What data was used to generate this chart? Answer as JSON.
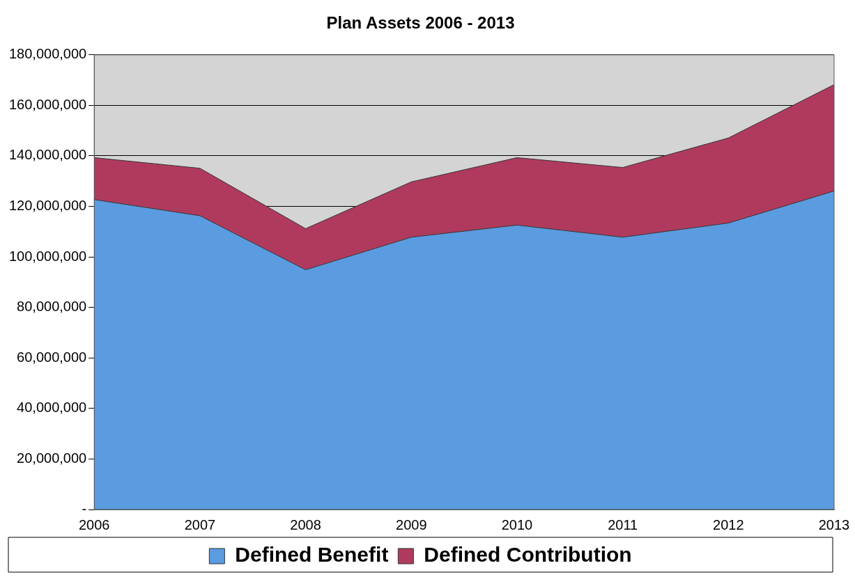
{
  "chart_data": {
    "type": "area",
    "title": "Plan Assets 2006 - 2013",
    "stacked": true,
    "categories": [
      "2006",
      "2007",
      "2008",
      "2009",
      "2010",
      "2011",
      "2012",
      "2013"
    ],
    "series": [
      {
        "name": "Defined Benefit",
        "color": "#5b9be0",
        "values": [
          122700000,
          116300000,
          94900000,
          107800000,
          112600000,
          107800000,
          113400000,
          126100000
        ]
      },
      {
        "name": "Defined Contribution",
        "color": "#b03a5e",
        "values": [
          16600000,
          18800000,
          16300000,
          21900000,
          26700000,
          27600000,
          33700000,
          42100000
        ]
      }
    ],
    "ylim": [
      0,
      180000000
    ],
    "yticks": [
      {
        "value": 0,
        "label": "-"
      },
      {
        "value": 20000000,
        "label": "20,000,000"
      },
      {
        "value": 40000000,
        "label": "40,000,000"
      },
      {
        "value": 60000000,
        "label": "60,000,000"
      },
      {
        "value": 80000000,
        "label": "80,000,000"
      },
      {
        "value": 100000000,
        "label": "100,000,000"
      },
      {
        "value": 120000000,
        "label": "120,000,000"
      },
      {
        "value": 140000000,
        "label": "140,000,000"
      },
      {
        "value": 160000000,
        "label": "160,000,000"
      },
      {
        "value": 180000000,
        "label": "180,000,000"
      }
    ],
    "grid": "y",
    "legend": "bottom"
  }
}
